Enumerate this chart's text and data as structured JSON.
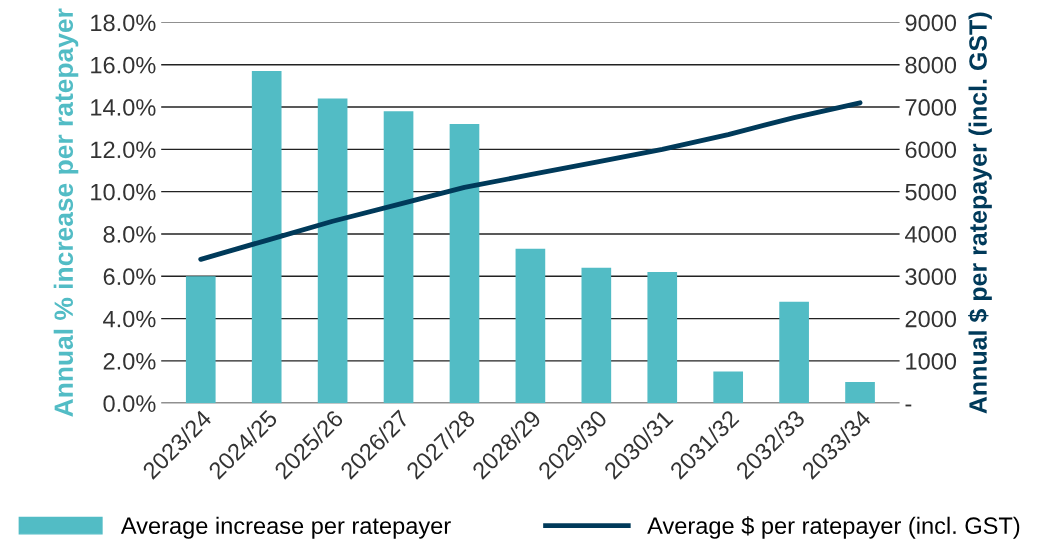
{
  "chart_data": {
    "type": "bar",
    "categories": [
      "2023/24",
      "2024/25",
      "2025/26",
      "2026/27",
      "2027/28",
      "2028/29",
      "2029/30",
      "2030/31",
      "2031/32",
      "2032/33",
      "2033/34"
    ],
    "series": [
      {
        "name": "Average increase per ratepayer",
        "color": "#52bcc5",
        "values": [
          6.0,
          15.7,
          14.4,
          13.8,
          13.2,
          7.3,
          6.4,
          6.2,
          1.5,
          4.8,
          1.0
        ]
      },
      {
        "name": "Average $ per ratepayer (incl. GST)",
        "type": "line",
        "axis": "y2",
        "color": "#003a5a",
        "values": [
          3400,
          3850,
          4300,
          4700,
          5100,
          5400,
          5700,
          6000,
          6350,
          6750,
          7100
        ]
      }
    ],
    "ylabel": "Annual % increase per ratepayer",
    "y2label": "Annual $ per ratepayer (incl. GST)",
    "ylim": [
      0,
      18
    ],
    "yticks": [
      {
        "value": 0,
        "label": "0.0%"
      },
      {
        "value": 2,
        "label": "2.0%"
      },
      {
        "value": 4,
        "label": "4.0%"
      },
      {
        "value": 6,
        "label": "6.0%"
      },
      {
        "value": 8,
        "label": "8.0%"
      },
      {
        "value": 10,
        "label": "10.0%"
      },
      {
        "value": 12,
        "label": "12.0%"
      },
      {
        "value": 14,
        "label": "14.0%"
      },
      {
        "value": 16,
        "label": "16.0%"
      },
      {
        "value": 18,
        "label": "18.0%"
      }
    ],
    "y2lim": [
      0,
      9000
    ],
    "y2ticks": [
      {
        "value": 0,
        "label": "-"
      },
      1000,
      2000,
      3000,
      4000,
      5000,
      6000,
      7000,
      8000,
      9000
    ],
    "grid": "y",
    "legend": "bottom",
    "marker": "none",
    "line_style": "solid"
  }
}
